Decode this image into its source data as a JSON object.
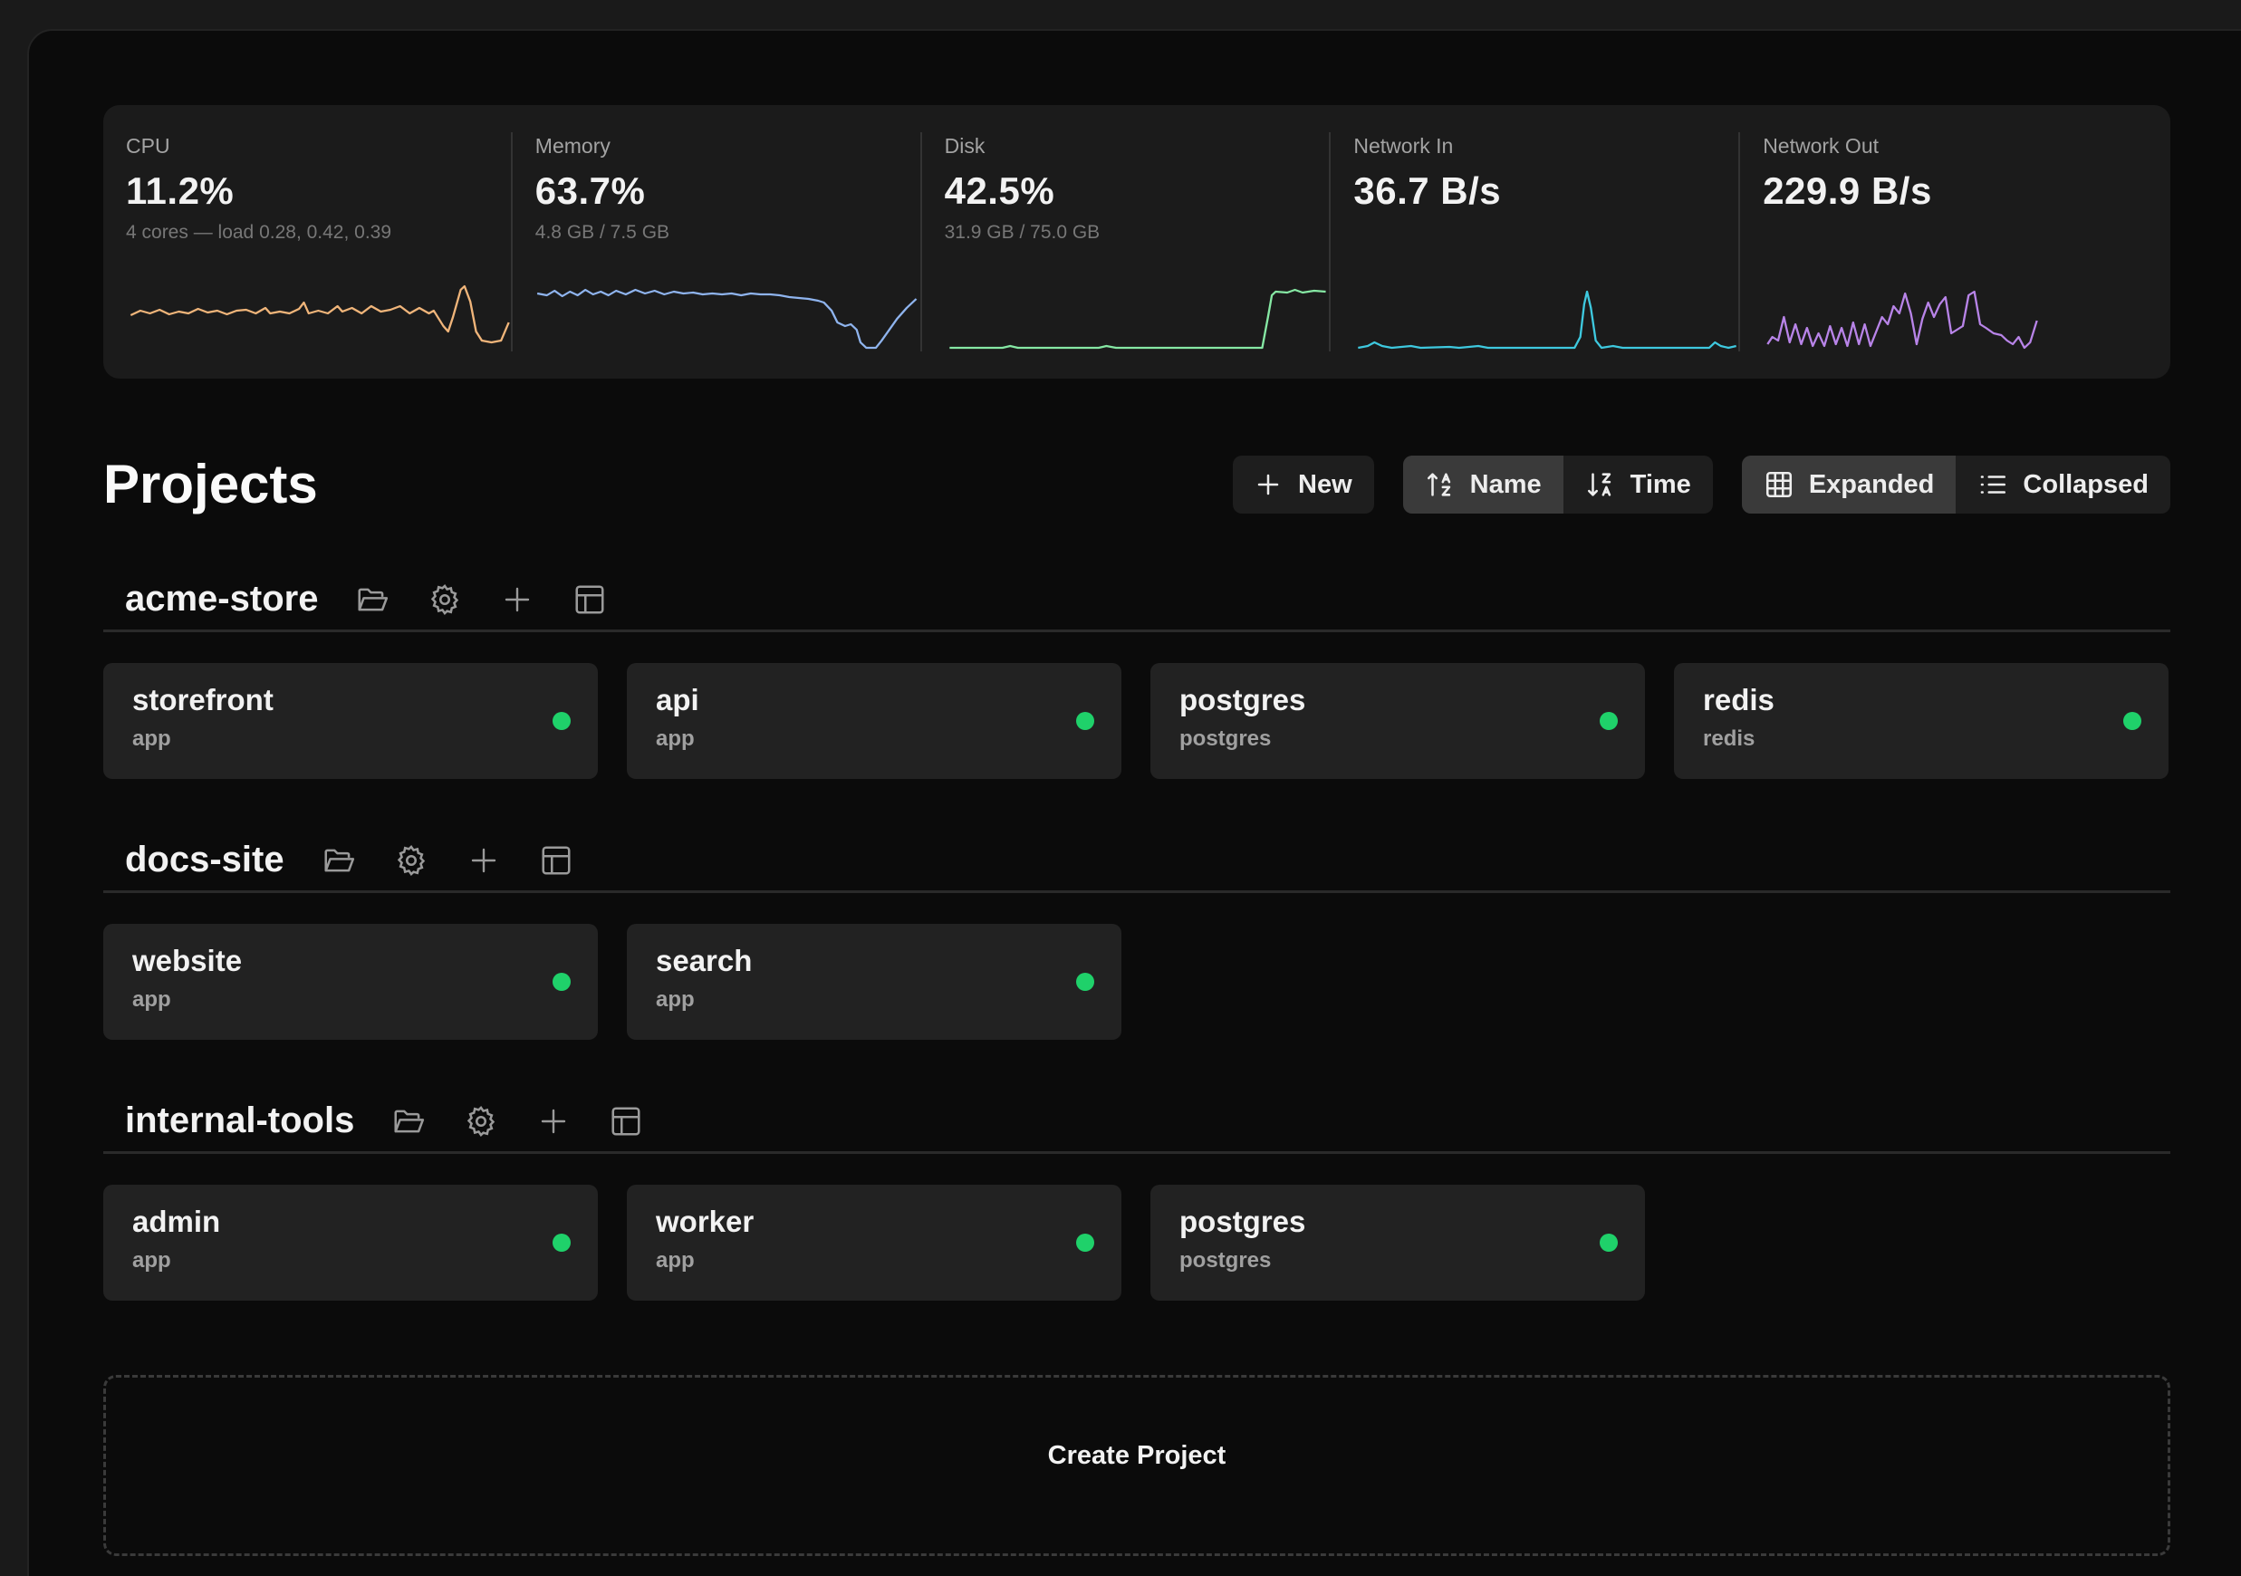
{
  "metrics": [
    {
      "label": "CPU",
      "value": "11.2%",
      "sub": "4 cores — load 0.28, 0.42, 0.39",
      "color": "#f0b57a"
    },
    {
      "label": "Memory",
      "value": "63.7%",
      "sub": "4.8 GB / 7.5 GB",
      "color": "#8fb4ee"
    },
    {
      "label": "Disk",
      "value": "42.5%",
      "sub": "31.9 GB / 75.0 GB",
      "color": "#86e8a4"
    },
    {
      "label": "Network In",
      "value": "36.7 B/s",
      "sub": "",
      "color": "#3ec9df"
    },
    {
      "label": "Network Out",
      "value": "229.9 B/s",
      "sub": "",
      "color": "#b884e8"
    }
  ],
  "header": {
    "title": "Projects",
    "new_label": "New",
    "sort": {
      "name_label": "Name",
      "time_label": "Time",
      "active": "name"
    },
    "view": {
      "expanded_label": "Expanded",
      "collapsed_label": "Collapsed",
      "active": "expanded"
    }
  },
  "groups": [
    {
      "name": "acme-store",
      "services": [
        {
          "name": "storefront",
          "type": "app",
          "status": "running"
        },
        {
          "name": "api",
          "type": "app",
          "status": "running"
        },
        {
          "name": "postgres",
          "type": "postgres",
          "status": "running"
        },
        {
          "name": "redis",
          "type": "redis",
          "status": "running"
        }
      ]
    },
    {
      "name": "docs-site",
      "services": [
        {
          "name": "website",
          "type": "app",
          "status": "running"
        },
        {
          "name": "search",
          "type": "app",
          "status": "running"
        }
      ]
    },
    {
      "name": "internal-tools",
      "services": [
        {
          "name": "admin",
          "type": "app",
          "status": "running"
        },
        {
          "name": "worker",
          "type": "app",
          "status": "running"
        },
        {
          "name": "postgres",
          "type": "postgres",
          "status": "running"
        }
      ]
    }
  ],
  "create_label": "Create Project",
  "status_color": "#1fd16a"
}
